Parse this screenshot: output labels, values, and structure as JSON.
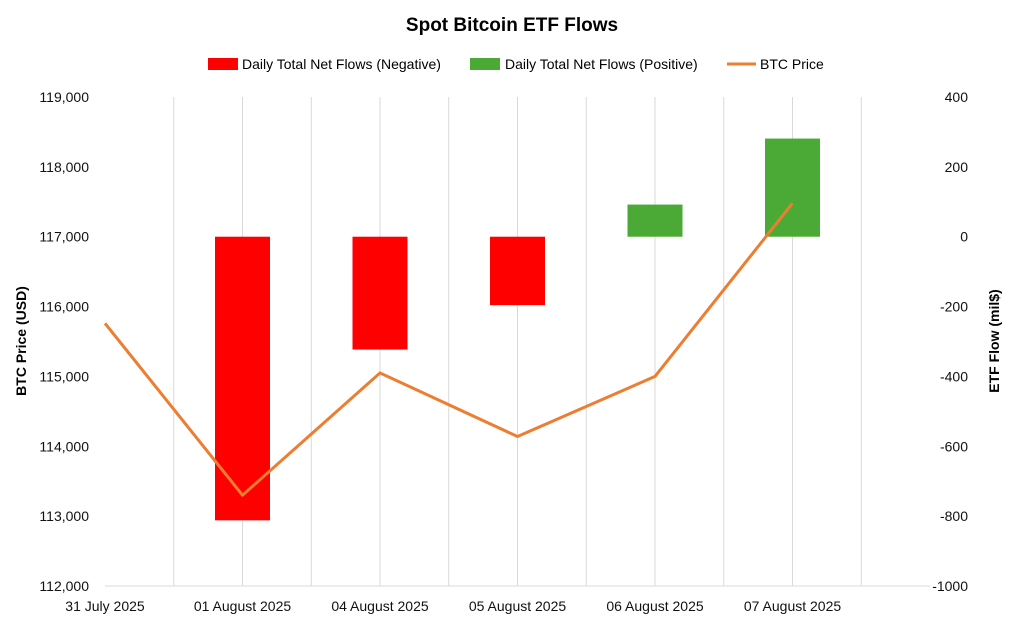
{
  "chart_data": {
    "type": "bar+line",
    "title": "Spot Bitcoin ETF Flows",
    "categories": [
      "31 July 2025",
      "01 August 2025",
      "04 August 2025",
      "05 August 2025",
      "06 August 2025",
      "07 August 2025"
    ],
    "flows": [
      0,
      -812,
      -323,
      -196,
      92,
      281
    ],
    "btc_price": [
      115760,
      113300,
      115050,
      114140,
      115000,
      117480
    ],
    "legend": {
      "negative": "Daily Total Net Flows (Negative)",
      "positive": "Daily Total Net Flows (Positive)",
      "line": "BTC Price"
    },
    "ylabel_left": "BTC Price (USD)",
    "ylabel_right": "ETF Flow (mil$)",
    "ylim_left": [
      112000,
      119000
    ],
    "ylim_right": [
      -1000,
      400
    ],
    "yticks_left": [
      "112,000",
      "113,000",
      "114,000",
      "115,000",
      "116,000",
      "117,000",
      "118,000",
      "119,000"
    ],
    "yticks_right": [
      "-1000",
      "-800",
      "-600",
      "-400",
      "-200",
      "0",
      "200",
      "400"
    ],
    "colors": {
      "negative": "#ff0000",
      "positive": "#4aaa35",
      "line": "#ed7d31"
    },
    "legend_position": "top",
    "grid": "vertical"
  }
}
